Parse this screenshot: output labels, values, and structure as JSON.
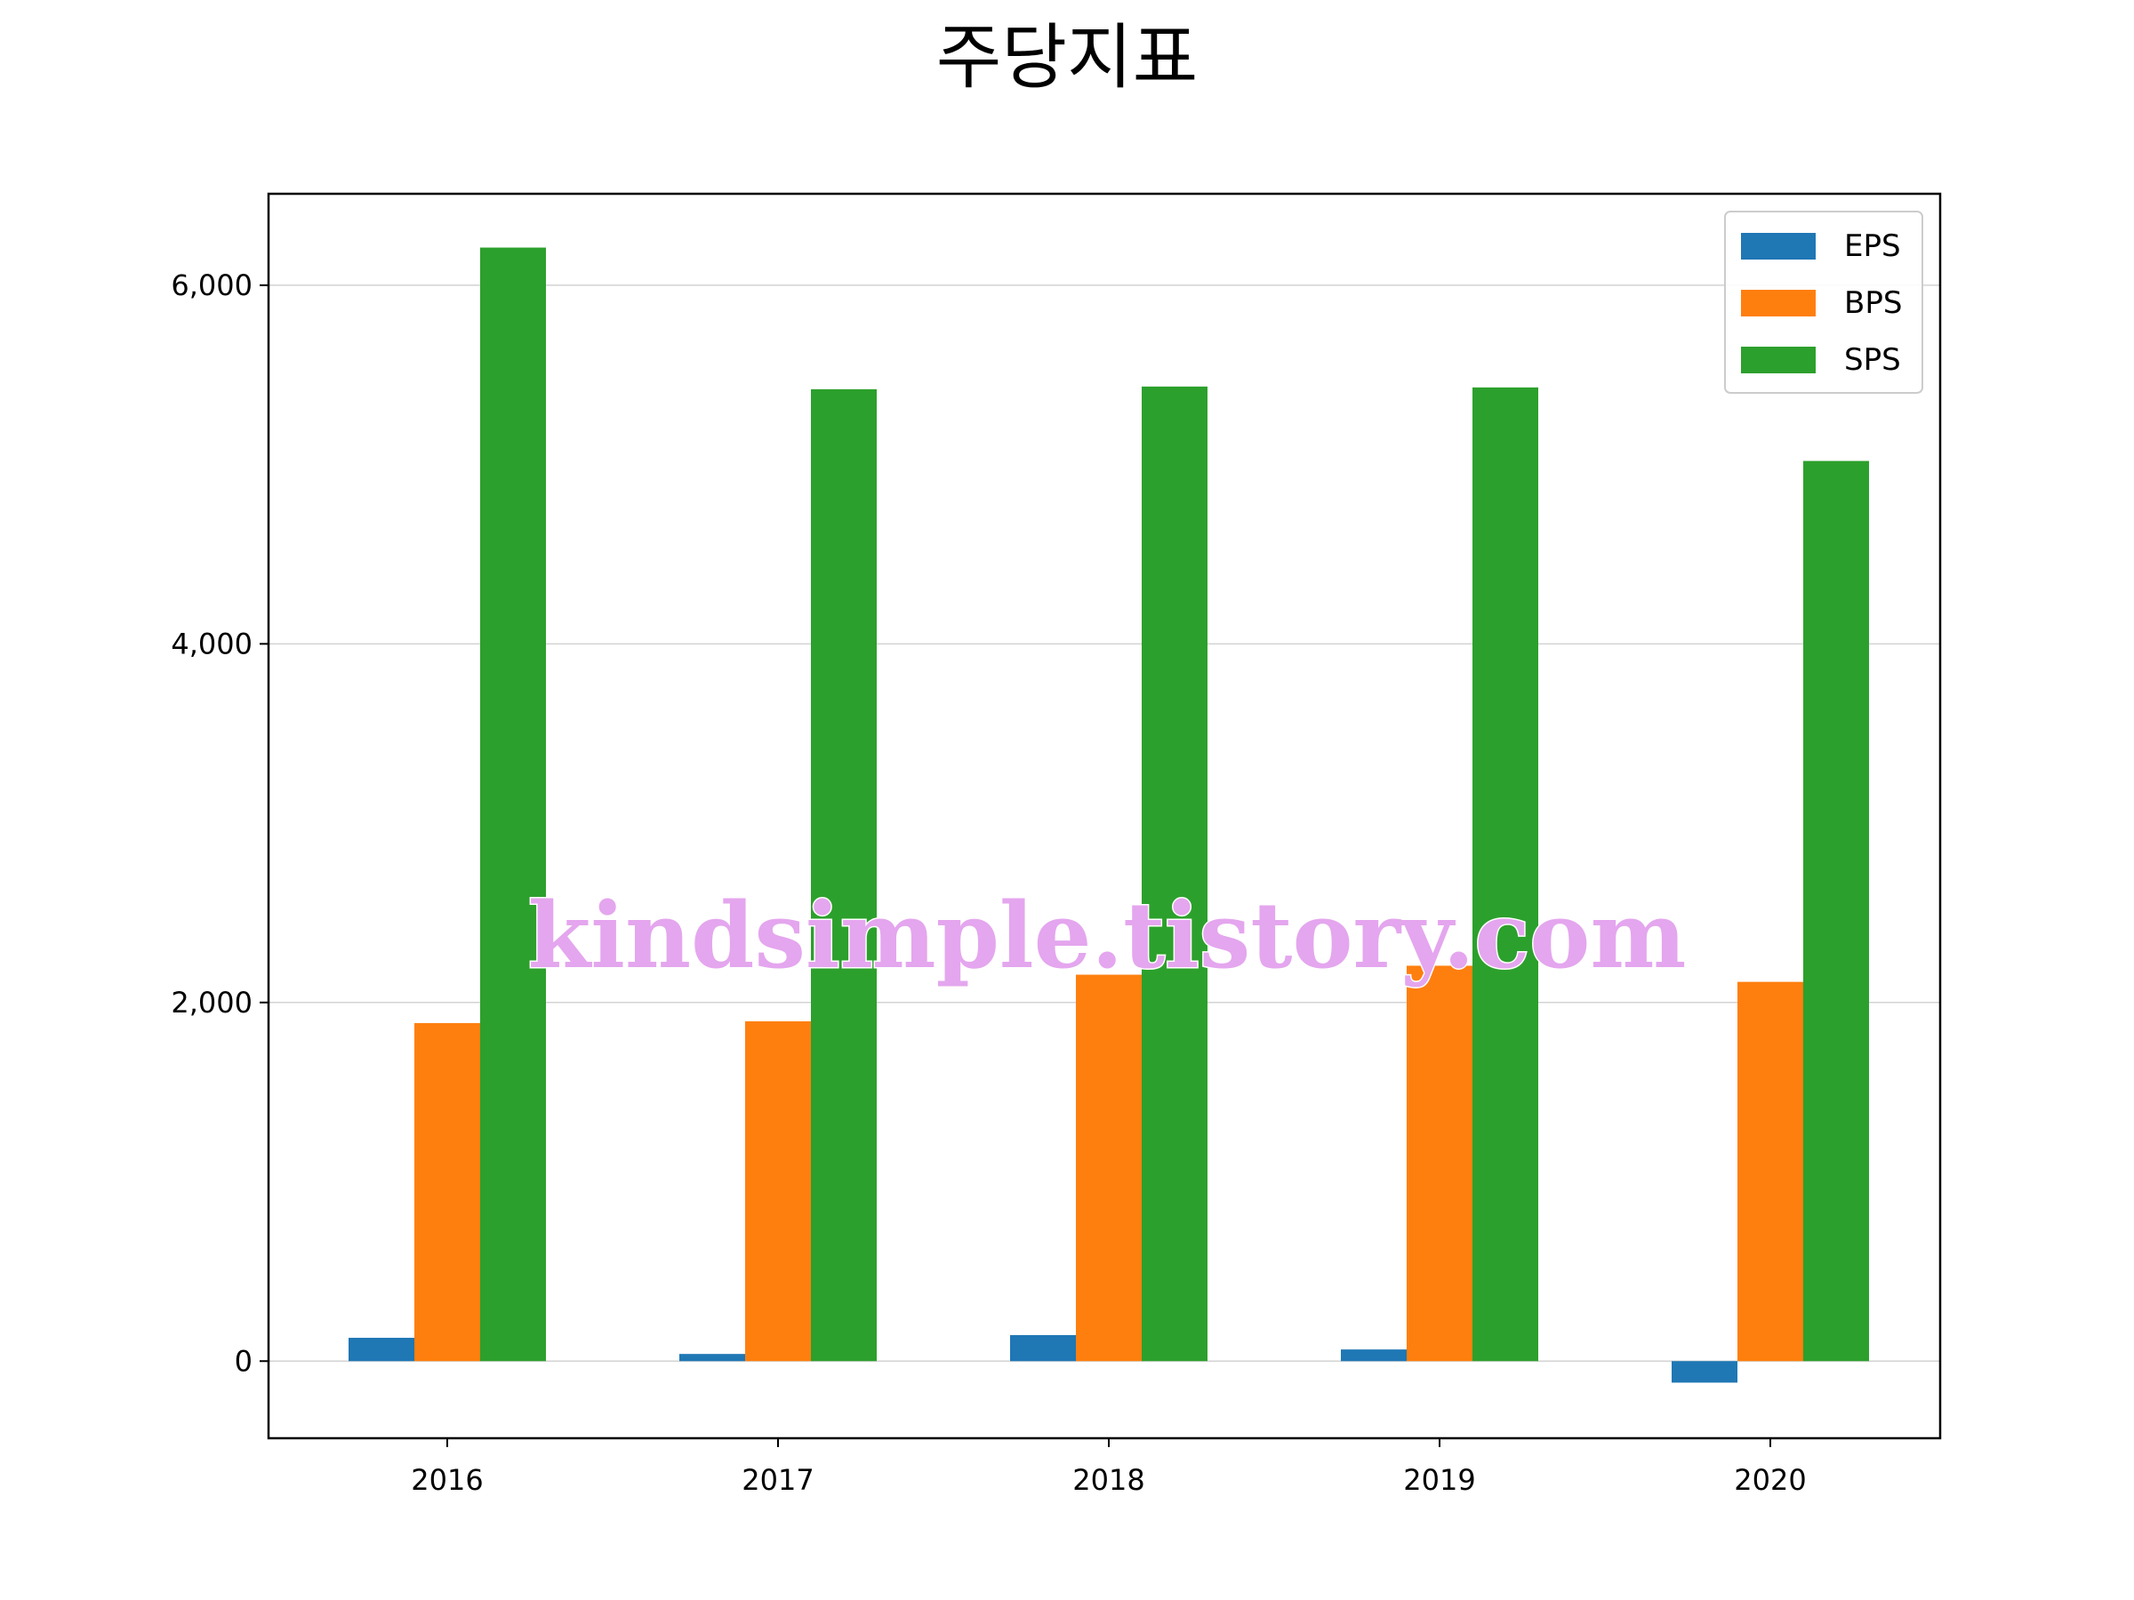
{
  "chart_data": {
    "type": "bar",
    "title": "주당지표",
    "xlabel": "",
    "ylabel": "",
    "categories": [
      "2016",
      "2017",
      "2018",
      "2019",
      "2020"
    ],
    "series": [
      {
        "name": "EPS",
        "color": "#1f77b4",
        "values": [
          130,
          40,
          145,
          65,
          -120
        ]
      },
      {
        "name": "BPS",
        "color": "#ff7f0e",
        "values": [
          1885,
          1895,
          2155,
          2205,
          2115
        ]
      },
      {
        "name": "SPS",
        "color": "#2ca02c",
        "values": [
          6210,
          5420,
          5435,
          5430,
          5020
        ]
      }
    ],
    "ylim": [
      -430,
      6510
    ],
    "yticks": [
      0,
      2000,
      4000,
      6000
    ],
    "ytick_labels": [
      "0",
      "2,000",
      "4,000",
      "6,000"
    ],
    "grid": "horizontal",
    "legend_position": "top-right",
    "watermark": "kindsimple.tistory.com"
  }
}
